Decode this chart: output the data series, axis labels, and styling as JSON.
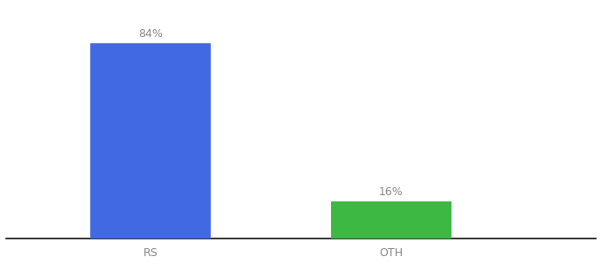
{
  "categories": [
    "RS",
    "OTH"
  ],
  "values": [
    84,
    16
  ],
  "bar_colors": [
    "#4169e1",
    "#3cb843"
  ],
  "label_texts": [
    "84%",
    "16%"
  ],
  "background_color": "#ffffff",
  "label_color": "#888888",
  "label_fontsize": 9,
  "tick_fontsize": 9,
  "tick_color": "#888888",
  "ylim": [
    0,
    100
  ],
  "bar_width": 0.5,
  "x_positions": [
    1,
    2
  ],
  "xlim": [
    0.4,
    2.85
  ]
}
